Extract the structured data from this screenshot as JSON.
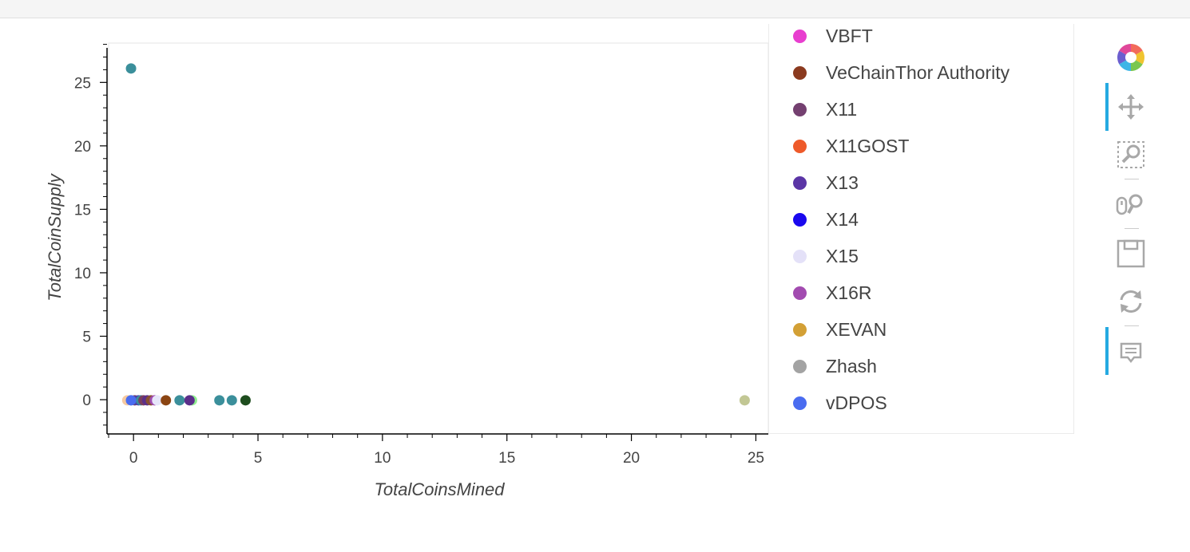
{
  "chart_data": {
    "type": "scatter",
    "xlabel": "TotalCoinsMined",
    "ylabel": "TotalCoinSupply",
    "xlim": [
      -1,
      25.5
    ],
    "ylim": [
      -2.7,
      28.1
    ],
    "x_ticks": [
      "0",
      "5",
      "10",
      "15",
      "20",
      "25"
    ],
    "y_ticks": [
      "0",
      "5",
      "10",
      "15",
      "20",
      "25"
    ],
    "grid": false,
    "legend_position": "right",
    "points": [
      {
        "x": -0.1,
        "y": 26.1,
        "color": "#3b8f9b"
      },
      {
        "x": -0.25,
        "y": -0.05,
        "color": "#f6c9a0"
      },
      {
        "x": -0.1,
        "y": -0.05,
        "color": "#7fc6e0"
      },
      {
        "x": 0.05,
        "y": -0.05,
        "color": "#6b3d6e"
      },
      {
        "x": 0.2,
        "y": -0.05,
        "color": "#4a3fb0"
      },
      {
        "x": 0.3,
        "y": -0.05,
        "color": "#3b8f9b"
      },
      {
        "x": 0.4,
        "y": -0.05,
        "color": "#7a3e5e"
      },
      {
        "x": 0.55,
        "y": -0.05,
        "color": "#5b2f8a"
      },
      {
        "x": 0.7,
        "y": -0.05,
        "color": "#8a5030"
      },
      {
        "x": 0.85,
        "y": -0.05,
        "color": "#a04cb0"
      },
      {
        "x": 0.95,
        "y": -0.05,
        "color": "#e6e6fa"
      },
      {
        "x": 1.3,
        "y": -0.05,
        "color": "#8b4513"
      },
      {
        "x": 1.85,
        "y": -0.05,
        "color": "#3b8f9b"
      },
      {
        "x": 2.35,
        "y": -0.05,
        "color": "#90ee90"
      },
      {
        "x": 2.25,
        "y": -0.05,
        "color": "#5b2f8a"
      },
      {
        "x": 3.45,
        "y": -0.05,
        "color": "#3b8f9b"
      },
      {
        "x": 3.95,
        "y": -0.05,
        "color": "#3b8f9b"
      },
      {
        "x": 4.5,
        "y": -0.05,
        "color": "#1e4d1e"
      },
      {
        "x": -0.1,
        "y": -0.05,
        "color": "#4a6cf0"
      },
      {
        "x": 24.55,
        "y": -0.05,
        "color": "#c2c794"
      }
    ]
  },
  "legend": [
    {
      "label": "VBFT",
      "color": "#e83ecf"
    },
    {
      "label": "VeChainThor Authority",
      "color": "#8b3a1f"
    },
    {
      "label": "X11",
      "color": "#744070"
    },
    {
      "label": "X11GOST",
      "color": "#ee5a2a"
    },
    {
      "label": "X13",
      "color": "#5b35a6"
    },
    {
      "label": "X14",
      "color": "#1a08ee"
    },
    {
      "label": "X15",
      "color": "#e4e1f8"
    },
    {
      "label": "X16R",
      "color": "#a24bb0"
    },
    {
      "label": "XEVAN",
      "color": "#d3a035"
    },
    {
      "label": "Zhash",
      "color": "#a3a3a3"
    },
    {
      "label": "vDPOS",
      "color": "#4a6cf0"
    }
  ],
  "toolbar": {
    "logo": "bokeh-logo-icon",
    "tools": [
      "pan-icon",
      "box-zoom-icon",
      "wheel-zoom-icon",
      "save-icon",
      "reset-icon",
      "hover-icon"
    ]
  }
}
